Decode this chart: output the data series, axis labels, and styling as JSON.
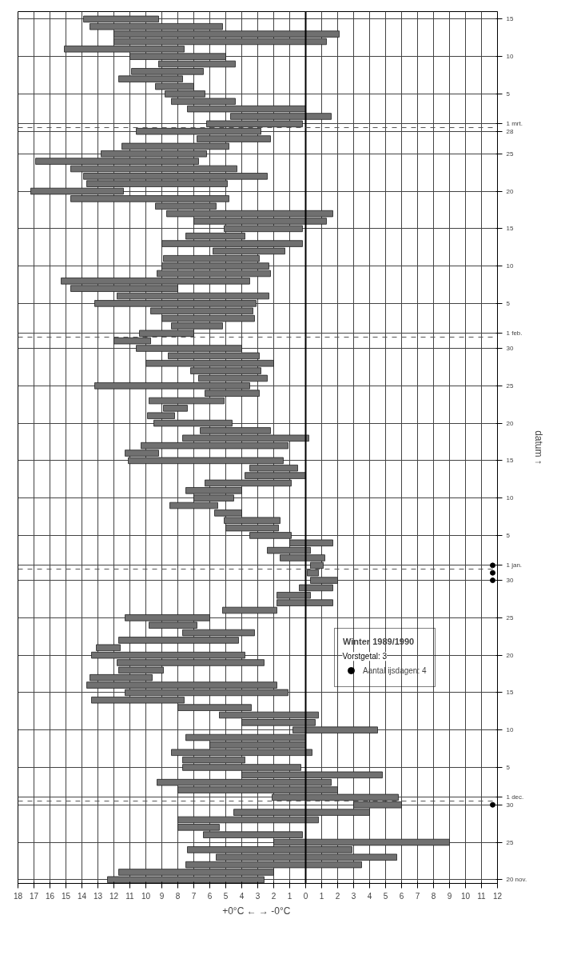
{
  "chart_data": {
    "type": "bar",
    "orientation": "horizontal",
    "xlabel": "+0°C ←  → -0°C",
    "ylabel": "datum ↑",
    "x": [
      "1989-11-20",
      "1989-11-21",
      "1989-11-22",
      "1989-11-23",
      "1989-11-24",
      "1989-11-25",
      "1989-11-26",
      "1989-11-27",
      "1989-11-28",
      "1989-11-29",
      "1989-11-30",
      "1989-12-01",
      "1989-12-02",
      "1989-12-03",
      "1989-12-04",
      "1989-12-05",
      "1989-12-06",
      "1989-12-07",
      "1989-12-08",
      "1989-12-09",
      "1989-12-10",
      "1989-12-11",
      "1989-12-12",
      "1989-12-13",
      "1989-12-14",
      "1989-12-15",
      "1989-12-16",
      "1989-12-17",
      "1989-12-18",
      "1989-12-19",
      "1989-12-20",
      "1989-12-21",
      "1989-12-22",
      "1989-12-23",
      "1989-12-24",
      "1989-12-25",
      "1989-12-26",
      "1989-12-27",
      "1989-12-28",
      "1989-12-29",
      "1989-12-30",
      "1989-12-31",
      "1990-01-01",
      "1990-01-02",
      "1990-01-03",
      "1990-01-04",
      "1990-01-05",
      "1990-01-06",
      "1990-01-07",
      "1990-01-08",
      "1990-01-09",
      "1990-01-10",
      "1990-01-11",
      "1990-01-12",
      "1990-01-13",
      "1990-01-14",
      "1990-01-15",
      "1990-01-16",
      "1990-01-17",
      "1990-01-18",
      "1990-01-19",
      "1990-01-20",
      "1990-01-21",
      "1990-01-22",
      "1990-01-23",
      "1990-01-24",
      "1990-01-25",
      "1990-01-26",
      "1990-01-27",
      "1990-01-28",
      "1990-01-29",
      "1990-01-30",
      "1990-01-31",
      "1990-02-01",
      "1990-02-02",
      "1990-02-03",
      "1990-02-04",
      "1990-02-05",
      "1990-02-06",
      "1990-02-07",
      "1990-02-08",
      "1990-02-09",
      "1990-02-10",
      "1990-02-11",
      "1990-02-12",
      "1990-02-13",
      "1990-02-14",
      "1990-02-15",
      "1990-02-16",
      "1990-02-17",
      "1990-02-18",
      "1990-02-19",
      "1990-02-20",
      "1990-02-21",
      "1990-02-22",
      "1990-02-23",
      "1990-02-24",
      "1990-02-25",
      "1990-02-26",
      "1990-02-27",
      "1990-02-28",
      "1990-03-01",
      "1990-03-02",
      "1990-03-03",
      "1990-03-04",
      "1990-03-05",
      "1990-03-06",
      "1990-03-07",
      "1990-03-08",
      "1990-03-09",
      "1990-03-10",
      "1990-03-11",
      "1990-03-12",
      "1990-03-13",
      "1990-03-14",
      "1990-03-15"
    ],
    "series": [
      {
        "color": "#707070",
        "base": [
          2.6,
          2.0,
          -3.5,
          -5.7,
          -2.9,
          -9.0,
          0.2,
          5.4,
          -0.8,
          -4.0,
          -6.0,
          -5.8,
          -2.0,
          -1.6,
          -4.8,
          0.3,
          3.8,
          -0.4,
          0.0,
          0.0,
          -4.5,
          -0.6,
          -0.8,
          3.4,
          7.6,
          1.1,
          1.8,
          9.6,
          8.9,
          2.6,
          3.8,
          11.6,
          4.2,
          3.2,
          6.8,
          6.0,
          1.8,
          -1.7,
          -0.3,
          -1.7,
          -2.0,
          -0.8,
          -1.1,
          -1.2,
          -0.3,
          -1.7,
          0.9,
          1.7,
          1.6,
          4.0,
          5.5,
          4.5,
          4.0,
          0.9,
          0.0,
          0.5,
          1.4,
          9.2,
          1.1,
          -0.2,
          2.2,
          4.6,
          8.2,
          7.4,
          5.1,
          2.9,
          3.5,
          2.4,
          2.8,
          2.0,
          2.9,
          4.0,
          9.7,
          7.0,
          5.2,
          3.2,
          3.3,
          3.1,
          2.3,
          8.0,
          3.5,
          2.2,
          2.3,
          2.9,
          1.3,
          0.2,
          3.8,
          0.2,
          -1.3,
          -1.7,
          5.6,
          4.8,
          11.4,
          4.9,
          2.4,
          4.3,
          6.7,
          6.2,
          4.8,
          2.2,
          2.8,
          0.2,
          -1.6,
          0.0,
          4.4,
          6.3,
          7.0,
          7.7,
          6.4,
          4.4,
          5.0,
          7.6,
          -1.3,
          -2.1,
          5.2,
          9.2
        ],
        "values": [
          9.8,
          9.7,
          11.0,
          11.3,
          10.3,
          11.0,
          6.2,
          2.6,
          8.8,
          8.5,
          3.0,
          7.9,
          10.0,
          10.9,
          8.8,
          7.4,
          3.9,
          8.8,
          6.0,
          7.5,
          5.3,
          4.6,
          6.2,
          4.6,
          5.8,
          10.2,
          11.9,
          3.9,
          2.8,
          9.2,
          9.6,
          1.5,
          7.5,
          4.5,
          3.0,
          5.3,
          3.4,
          3.5,
          2.1,
          2.1,
          1.7,
          0.7,
          0.8,
          2.8,
          2.7,
          2.7,
          2.6,
          3.3,
          3.5,
          1.7,
          3.0,
          2.5,
          3.5,
          5.4,
          3.8,
          3.0,
          9.7,
          2.1,
          9.2,
          7.9,
          4.4,
          4.9,
          1.7,
          1.5,
          4.7,
          3.4,
          9.7,
          4.3,
          4.4,
          8.0,
          5.7,
          6.6,
          2.3,
          3.4,
          3.2,
          5.8,
          6.4,
          10.1,
          9.5,
          6.7,
          11.8,
          7.1,
          6.7,
          6.0,
          4.5,
          8.8,
          3.7,
          4.9,
          8.3,
          10.4,
          3.8,
          9.9,
          5.8,
          8.8,
          11.5,
          10.4,
          10.2,
          6.6,
          6.7,
          4.6,
          7.8,
          6.0,
          6.3,
          7.4,
          4.0,
          2.5,
          2.4,
          4.0,
          4.5,
          4.8,
          6.0,
          7.5,
          13.3,
          14.1,
          8.3,
          4.7
        ]
      },
      {
        "type": "scatter",
        "name": "Aantal ijsdagen: 4",
        "color": "#000000",
        "marker": "circle",
        "x": [
          "1989-11-30",
          "1989-12-30",
          "1989-12-31",
          "1990-01-01"
        ],
        "values": [
          -11.7,
          -11.7,
          -11.7,
          -11.7
        ]
      }
    ],
    "xlim": [
      18,
      -12
    ],
    "xticks": [
      18,
      17,
      16,
      15,
      14,
      13,
      12,
      11,
      10,
      9,
      8,
      7,
      6,
      5,
      4,
      3,
      2,
      1,
      0,
      {
        "value": -1,
        "label": "1"
      },
      {
        "value": -2,
        "label": "2"
      },
      {
        "value": -3,
        "label": "3"
      },
      {
        "value": -4,
        "label": "4"
      },
      {
        "value": -5,
        "label": "5"
      },
      {
        "value": -6,
        "label": "6"
      },
      {
        "value": -7,
        "label": "7"
      },
      {
        "value": -8,
        "label": "8"
      },
      {
        "value": -9,
        "label": "9"
      },
      {
        "value": -10,
        "label": "10"
      },
      {
        "value": -11,
        "label": "11"
      },
      {
        "value": -12,
        "label": "12"
      }
    ],
    "ylim": [
      "1989-11-19T12:00",
      "1990-03-16"
    ],
    "yticks": [
      {
        "value": "1989-11-20",
        "label": "20 nov."
      },
      {
        "value": "1989-11-25",
        "label": "25"
      },
      {
        "value": "1989-11-30",
        "label": "30"
      },
      {
        "value": "1989-12-01",
        "label": "1 dec."
      },
      {
        "value": "1989-12-05",
        "label": "5"
      },
      {
        "value": "1989-12-10",
        "label": "10"
      },
      {
        "value": "1989-12-15",
        "label": "15"
      },
      {
        "value": "1989-12-20",
        "label": "20"
      },
      {
        "value": "1989-12-25",
        "label": "25"
      },
      {
        "value": "1989-12-30",
        "label": "30"
      },
      {
        "value": "1990-01-01",
        "label": "1 jan."
      },
      {
        "value": "1990-01-05",
        "label": "5"
      },
      {
        "value": "1990-01-10",
        "label": "10"
      },
      {
        "value": "1990-01-15",
        "label": "15"
      },
      {
        "value": "1990-01-20",
        "label": "20"
      },
      {
        "value": "1990-01-25",
        "label": "25"
      },
      {
        "value": "1990-01-30",
        "label": "30"
      },
      {
        "value": "1990-02-01",
        "label": "1 feb."
      },
      {
        "value": "1990-02-05",
        "label": "5"
      },
      {
        "value": "1990-02-10",
        "label": "10"
      },
      {
        "value": "1990-02-15",
        "label": "15"
      },
      {
        "value": "1990-02-20",
        "label": "20"
      },
      {
        "value": "1990-02-25",
        "label": "25"
      },
      {
        "value": "1990-02-28",
        "label": "28"
      },
      {
        "value": "1990-03-01",
        "label": "1 mrt."
      },
      {
        "value": "1990-03-05",
        "label": "5"
      },
      {
        "value": "1990-03-10",
        "label": "10"
      },
      {
        "value": "1990-03-15",
        "label": "15"
      }
    ],
    "ref_lines": [
      {
        "axis": "x",
        "value": 0,
        "color": "#000000",
        "line_style": "solid"
      },
      {
        "axis": "y",
        "value": "1989-11-30T12:00",
        "color": "#555555",
        "line_style": "dashed"
      },
      {
        "axis": "y",
        "value": "1989-12-31T12:00",
        "color": "#555555",
        "line_style": "dashed"
      },
      {
        "axis": "y",
        "value": "1990-01-31T12:00",
        "color": "#555555",
        "line_style": "dashed"
      },
      {
        "axis": "y",
        "value": "1990-02-28T12:00",
        "color": "#555555",
        "line_style": "dashed"
      }
    ],
    "grid": true,
    "legend": "bottom right",
    "legend_title": "Winter 1989/1990",
    "annotations": [
      "Vorstgetal: 3"
    ]
  }
}
